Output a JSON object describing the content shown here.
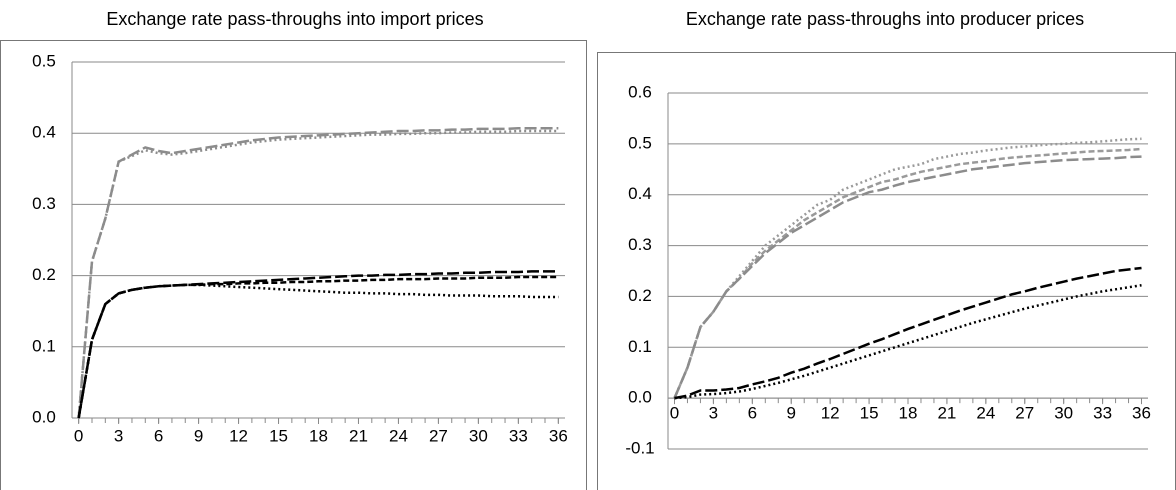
{
  "chart_data": [
    {
      "type": "line",
      "title": "Exchange rate pass-throughs into import prices",
      "x": [
        0,
        1,
        2,
        3,
        4,
        5,
        6,
        7,
        8,
        9,
        10,
        11,
        12,
        13,
        14,
        15,
        16,
        17,
        18,
        19,
        20,
        21,
        22,
        23,
        24,
        25,
        26,
        27,
        28,
        29,
        30,
        31,
        32,
        33,
        34,
        35,
        36
      ],
      "xlim": [
        -0.5,
        36.5
      ],
      "xticks": [
        0,
        3,
        6,
        9,
        12,
        15,
        18,
        21,
        24,
        27,
        30,
        33,
        36
      ],
      "ylim": [
        0,
        0.5
      ],
      "yticks": [
        {
          "value": 0,
          "label": "0.0"
        },
        0.1,
        0.2,
        0.3,
        0.4,
        0.5
      ],
      "grid": true,
      "series": [
        {
          "color": "#8c8c8c",
          "dash": "long-dash",
          "values": [
            0,
            0.22,
            0.28,
            0.36,
            0.37,
            0.38,
            0.375,
            0.372,
            0.375,
            0.378,
            0.381,
            0.384,
            0.387,
            0.39,
            0.392,
            0.394,
            0.395,
            0.396,
            0.397,
            0.398,
            0.399,
            0.4,
            0.401,
            0.402,
            0.403,
            0.403,
            0.404,
            0.404,
            0.405,
            0.405,
            0.406,
            0.406,
            0.406,
            0.407,
            0.407,
            0.407,
            0.407
          ]
        },
        {
          "color": "#8c8c8c",
          "dash": "dot",
          "values": [
            0,
            0.22,
            0.28,
            0.36,
            0.368,
            0.376,
            0.372,
            0.37,
            0.372,
            0.375,
            0.378,
            0.381,
            0.384,
            0.387,
            0.389,
            0.391,
            0.392,
            0.393,
            0.394,
            0.395,
            0.396,
            0.397,
            0.398,
            0.398,
            0.399,
            0.399,
            0.4,
            0.4,
            0.401,
            0.401,
            0.402,
            0.402,
            0.402,
            0.403,
            0.403,
            0.403,
            0.403
          ]
        },
        {
          "color": "#000000",
          "dash": "long-dash",
          "values": [
            0,
            0.11,
            0.16,
            0.175,
            0.18,
            0.183,
            0.185,
            0.186,
            0.187,
            0.188,
            0.189,
            0.19,
            0.191,
            0.192,
            0.193,
            0.194,
            0.195,
            0.196,
            0.197,
            0.198,
            0.199,
            0.2,
            0.2,
            0.201,
            0.201,
            0.202,
            0.202,
            0.203,
            0.203,
            0.204,
            0.204,
            0.205,
            0.205,
            0.205,
            0.206,
            0.206,
            0.206
          ]
        },
        {
          "color": "#000000",
          "dash": "dash",
          "values": [
            0,
            0.11,
            0.16,
            0.175,
            0.18,
            0.183,
            0.185,
            0.186,
            0.187,
            0.187,
            0.188,
            0.188,
            0.189,
            0.189,
            0.19,
            0.19,
            0.191,
            0.191,
            0.192,
            0.192,
            0.193,
            0.193,
            0.194,
            0.194,
            0.195,
            0.195,
            0.195,
            0.196,
            0.196,
            0.196,
            0.197,
            0.197,
            0.197,
            0.198,
            0.198,
            0.198,
            0.198
          ]
        },
        {
          "color": "#000000",
          "dash": "dot",
          "values": [
            0,
            0.11,
            0.16,
            0.175,
            0.18,
            0.183,
            0.185,
            0.186,
            0.187,
            0.187,
            0.186,
            0.185,
            0.184,
            0.183,
            0.182,
            0.181,
            0.18,
            0.179,
            0.178,
            0.177,
            0.176,
            0.176,
            0.175,
            0.175,
            0.174,
            0.174,
            0.173,
            0.173,
            0.172,
            0.172,
            0.172,
            0.171,
            0.171,
            0.171,
            0.17,
            0.17,
            0.17
          ]
        }
      ]
    },
    {
      "type": "line",
      "title": "Exchange rate pass-throughs into producer prices",
      "x": [
        0,
        1,
        2,
        3,
        4,
        5,
        6,
        7,
        8,
        9,
        10,
        11,
        12,
        13,
        14,
        15,
        16,
        17,
        18,
        19,
        20,
        21,
        22,
        23,
        24,
        25,
        26,
        27,
        28,
        29,
        30,
        31,
        32,
        33,
        34,
        35,
        36
      ],
      "xlim": [
        -0.5,
        36.5
      ],
      "xticks": [
        0,
        3,
        6,
        9,
        12,
        15,
        18,
        21,
        24,
        27,
        30,
        33,
        36
      ],
      "ylim": [
        -0.1,
        0.6
      ],
      "yticks": [
        -0.1,
        {
          "value": 0,
          "label": "0.0"
        },
        0.1,
        0.2,
        0.3,
        0.4,
        0.5,
        0.6
      ],
      "grid": true,
      "series": [
        {
          "color": "#9a9a9a",
          "dash": "dot",
          "values": [
            0,
            0.06,
            0.14,
            0.17,
            0.21,
            0.24,
            0.27,
            0.3,
            0.32,
            0.34,
            0.36,
            0.38,
            0.39,
            0.41,
            0.42,
            0.43,
            0.44,
            0.45,
            0.455,
            0.46,
            0.47,
            0.475,
            0.48,
            0.483,
            0.487,
            0.49,
            0.493,
            0.495,
            0.497,
            0.499,
            0.5,
            0.502,
            0.503,
            0.505,
            0.507,
            0.509,
            0.51
          ]
        },
        {
          "color": "#9a9a9a",
          "dash": "dash",
          "values": [
            0,
            0.06,
            0.14,
            0.17,
            0.21,
            0.235,
            0.265,
            0.29,
            0.31,
            0.33,
            0.35,
            0.365,
            0.38,
            0.395,
            0.405,
            0.415,
            0.425,
            0.43,
            0.438,
            0.445,
            0.45,
            0.455,
            0.46,
            0.463,
            0.466,
            0.47,
            0.473,
            0.475,
            0.477,
            0.479,
            0.481,
            0.483,
            0.485,
            0.486,
            0.487,
            0.488,
            0.49
          ]
        },
        {
          "color": "#8c8c8c",
          "dash": "long-dash",
          "values": [
            0,
            0.06,
            0.14,
            0.17,
            0.21,
            0.235,
            0.26,
            0.285,
            0.305,
            0.325,
            0.34,
            0.355,
            0.37,
            0.385,
            0.395,
            0.405,
            0.41,
            0.418,
            0.425,
            0.43,
            0.435,
            0.44,
            0.445,
            0.45,
            0.453,
            0.456,
            0.459,
            0.462,
            0.464,
            0.466,
            0.468,
            0.469,
            0.47,
            0.471,
            0.472,
            0.474,
            0.475
          ]
        },
        {
          "color": "#000000",
          "dash": "long-dash",
          "values": [
            0,
            0.005,
            0.015,
            0.015,
            0.017,
            0.02,
            0.027,
            0.033,
            0.04,
            0.05,
            0.058,
            0.068,
            0.077,
            0.087,
            0.097,
            0.107,
            0.116,
            0.126,
            0.136,
            0.145,
            0.154,
            0.163,
            0.172,
            0.18,
            0.188,
            0.196,
            0.204,
            0.21,
            0.217,
            0.223,
            0.229,
            0.235,
            0.24,
            0.245,
            0.25,
            0.253,
            0.256
          ]
        },
        {
          "color": "#000000",
          "dash": "dot",
          "values": [
            0,
            0.002,
            0.007,
            0.008,
            0.01,
            0.013,
            0.018,
            0.024,
            0.03,
            0.037,
            0.044,
            0.052,
            0.06,
            0.068,
            0.076,
            0.084,
            0.092,
            0.1,
            0.108,
            0.116,
            0.124,
            0.132,
            0.14,
            0.148,
            0.155,
            0.162,
            0.169,
            0.176,
            0.182,
            0.188,
            0.194,
            0.2,
            0.205,
            0.21,
            0.214,
            0.218,
            0.222
          ]
        }
      ]
    }
  ]
}
